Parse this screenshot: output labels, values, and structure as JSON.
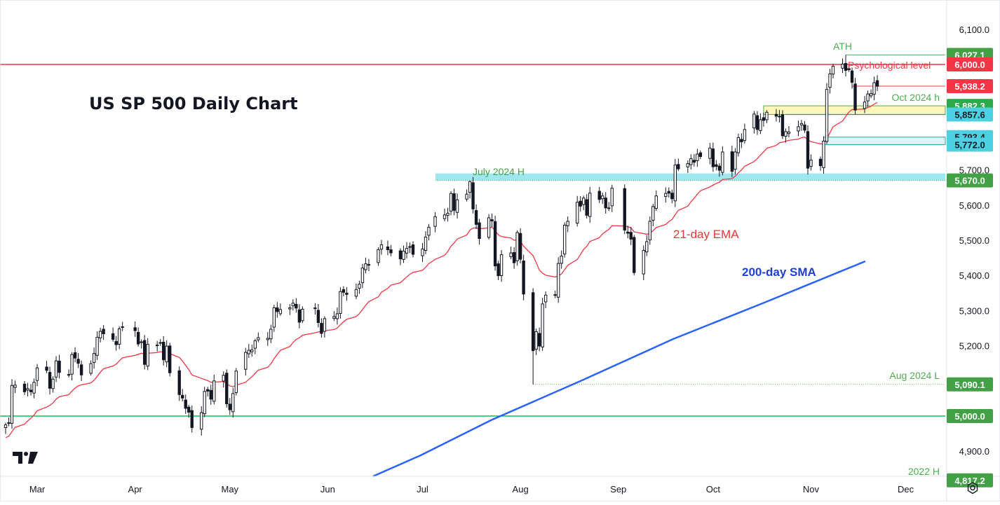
{
  "chart_data": {
    "type": "candlestick",
    "title": "US SP 500 Daily Chart",
    "x_ticks": [
      "Mar",
      "Apr",
      "May",
      "Jun",
      "Jul",
      "Aug",
      "Sep",
      "Oct",
      "Nov",
      "Dec"
    ],
    "y_ticks": [
      "6,100.0",
      "5,700.0",
      "5,600.0",
      "5,500.0",
      "5,400.0",
      "5,300.0",
      "5,200.0",
      "4,900.0"
    ],
    "ylim": [
      4760,
      6160
    ],
    "x_range": [
      "2024-02-20",
      "2024-12-31"
    ],
    "key_levels": [
      {
        "label": "6,027.1",
        "value": 6027.1,
        "color": "#4caf50",
        "annotation": "ATH"
      },
      {
        "label": "6,000.0",
        "value": 6000.0,
        "color": "#f23645",
        "annotation": "Psychological level"
      },
      {
        "label": "5,938.2",
        "value": 5938.2,
        "color": "#f23645",
        "annotation": ""
      },
      {
        "label": "5,882.3",
        "value": 5882.3,
        "color": "#089981",
        "annotation": "Oct 2024 h"
      },
      {
        "label": "5,857.6",
        "value": 5857.6,
        "color": "#26c6da",
        "annotation": ""
      },
      {
        "label": "5,793.4",
        "value": 5793.4,
        "color": "#26c6da",
        "annotation": ""
      },
      {
        "label": "5,772.0",
        "value": 5772.0,
        "color": "#26c6da",
        "annotation": ""
      },
      {
        "label": "5,670.0",
        "value": 5670.0,
        "color": "#4caf50",
        "annotation": "July 2024 H"
      },
      {
        "label": "5,090.1",
        "value": 5090.1,
        "color": "#4caf50",
        "annotation": "Aug 2024 L"
      },
      {
        "label": "5,000.0",
        "value": 5000.0,
        "color": "#4caf50",
        "annotation": ""
      },
      {
        "label": "4,817.2",
        "value": 4817.2,
        "color": "#4caf50",
        "annotation": "2022 H"
      }
    ],
    "annotations": {
      "ema_label": "21-day EMA",
      "sma_label": "200-day SMA"
    },
    "series": {
      "closes": [
        {
          "x": "2024-02-20",
          "y": 4975
        },
        {
          "x": "2024-02-21",
          "y": 4981
        },
        {
          "x": "2024-02-22",
          "y": 5087
        },
        {
          "x": "2024-02-23",
          "y": 5088
        },
        {
          "x": "2024-02-26",
          "y": 5069
        },
        {
          "x": "2024-02-27",
          "y": 5078
        },
        {
          "x": "2024-02-28",
          "y": 5069
        },
        {
          "x": "2024-02-29",
          "y": 5096
        },
        {
          "x": "2024-03-01",
          "y": 5137
        },
        {
          "x": "2024-03-04",
          "y": 5130
        },
        {
          "x": "2024-03-05",
          "y": 5079
        },
        {
          "x": "2024-03-06",
          "y": 5105
        },
        {
          "x": "2024-03-07",
          "y": 5157
        },
        {
          "x": "2024-03-08",
          "y": 5124
        },
        {
          "x": "2024-03-11",
          "y": 5117
        },
        {
          "x": "2024-03-12",
          "y": 5175
        },
        {
          "x": "2024-03-13",
          "y": 5165
        },
        {
          "x": "2024-03-14",
          "y": 5150
        },
        {
          "x": "2024-03-15",
          "y": 5117
        },
        {
          "x": "2024-03-18",
          "y": 5149
        },
        {
          "x": "2024-03-19",
          "y": 5178
        },
        {
          "x": "2024-03-20",
          "y": 5224
        },
        {
          "x": "2024-03-21",
          "y": 5241
        },
        {
          "x": "2024-03-22",
          "y": 5234
        },
        {
          "x": "2024-03-25",
          "y": 5218
        },
        {
          "x": "2024-03-26",
          "y": 5203
        },
        {
          "x": "2024-03-27",
          "y": 5248
        },
        {
          "x": "2024-03-28",
          "y": 5254
        },
        {
          "x": "2024-04-01",
          "y": 5243
        },
        {
          "x": "2024-04-02",
          "y": 5205
        },
        {
          "x": "2024-04-03",
          "y": 5211
        },
        {
          "x": "2024-04-04",
          "y": 5147
        },
        {
          "x": "2024-04-05",
          "y": 5204
        },
        {
          "x": "2024-04-08",
          "y": 5202
        },
        {
          "x": "2024-04-09",
          "y": 5209
        },
        {
          "x": "2024-04-10",
          "y": 5160
        },
        {
          "x": "2024-04-11",
          "y": 5199
        },
        {
          "x": "2024-04-12",
          "y": 5123
        },
        {
          "x": "2024-04-15",
          "y": 5061
        },
        {
          "x": "2024-04-16",
          "y": 5051
        },
        {
          "x": "2024-04-17",
          "y": 5022
        },
        {
          "x": "2024-04-18",
          "y": 5011
        },
        {
          "x": "2024-04-19",
          "y": 4967
        },
        {
          "x": "2024-04-22",
          "y": 5010
        },
        {
          "x": "2024-04-23",
          "y": 5070
        },
        {
          "x": "2024-04-24",
          "y": 5071
        },
        {
          "x": "2024-04-25",
          "y": 5048
        },
        {
          "x": "2024-04-26",
          "y": 5100
        },
        {
          "x": "2024-04-29",
          "y": 5116
        },
        {
          "x": "2024-04-30",
          "y": 5035
        },
        {
          "x": "2024-05-01",
          "y": 5018
        },
        {
          "x": "2024-05-02",
          "y": 5064
        },
        {
          "x": "2024-05-03",
          "y": 5128
        },
        {
          "x": "2024-05-06",
          "y": 5181
        },
        {
          "x": "2024-05-07",
          "y": 5187
        },
        {
          "x": "2024-05-08",
          "y": 5188
        },
        {
          "x": "2024-05-09",
          "y": 5214
        },
        {
          "x": "2024-05-10",
          "y": 5223
        },
        {
          "x": "2024-05-13",
          "y": 5221
        },
        {
          "x": "2024-05-14",
          "y": 5247
        },
        {
          "x": "2024-05-15",
          "y": 5308
        },
        {
          "x": "2024-05-16",
          "y": 5297
        },
        {
          "x": "2024-05-17",
          "y": 5303
        },
        {
          "x": "2024-05-20",
          "y": 5308
        },
        {
          "x": "2024-05-21",
          "y": 5321
        },
        {
          "x": "2024-05-22",
          "y": 5307
        },
        {
          "x": "2024-05-23",
          "y": 5267
        },
        {
          "x": "2024-05-24",
          "y": 5304
        },
        {
          "x": "2024-05-28",
          "y": 5306
        },
        {
          "x": "2024-05-29",
          "y": 5266
        },
        {
          "x": "2024-05-30",
          "y": 5235
        },
        {
          "x": "2024-05-31",
          "y": 5277
        },
        {
          "x": "2024-06-03",
          "y": 5283
        },
        {
          "x": "2024-06-04",
          "y": 5291
        },
        {
          "x": "2024-06-05",
          "y": 5354
        },
        {
          "x": "2024-06-06",
          "y": 5352
        },
        {
          "x": "2024-06-07",
          "y": 5346
        },
        {
          "x": "2024-06-10",
          "y": 5360
        },
        {
          "x": "2024-06-11",
          "y": 5375
        },
        {
          "x": "2024-06-12",
          "y": 5421
        },
        {
          "x": "2024-06-13",
          "y": 5433
        },
        {
          "x": "2024-06-14",
          "y": 5431
        },
        {
          "x": "2024-06-17",
          "y": 5473
        },
        {
          "x": "2024-06-18",
          "y": 5487
        },
        {
          "x": "2024-06-20",
          "y": 5473
        },
        {
          "x": "2024-06-21",
          "y": 5464
        },
        {
          "x": "2024-06-24",
          "y": 5447
        },
        {
          "x": "2024-06-25",
          "y": 5469
        },
        {
          "x": "2024-06-26",
          "y": 5477
        },
        {
          "x": "2024-06-27",
          "y": 5482
        },
        {
          "x": "2024-06-28",
          "y": 5460
        },
        {
          "x": "2024-07-01",
          "y": 5475
        },
        {
          "x": "2024-07-02",
          "y": 5509
        },
        {
          "x": "2024-07-03",
          "y": 5537
        },
        {
          "x": "2024-07-05",
          "y": 5567
        },
        {
          "x": "2024-07-08",
          "y": 5572
        },
        {
          "x": "2024-07-09",
          "y": 5577
        },
        {
          "x": "2024-07-10",
          "y": 5633
        },
        {
          "x": "2024-07-11",
          "y": 5585
        },
        {
          "x": "2024-07-12",
          "y": 5615
        },
        {
          "x": "2024-07-15",
          "y": 5631
        },
        {
          "x": "2024-07-16",
          "y": 5667
        },
        {
          "x": "2024-07-17",
          "y": 5589
        },
        {
          "x": "2024-07-18",
          "y": 5545
        },
        {
          "x": "2024-07-19",
          "y": 5505
        },
        {
          "x": "2024-07-22",
          "y": 5564
        },
        {
          "x": "2024-07-23",
          "y": 5555
        },
        {
          "x": "2024-07-24",
          "y": 5427
        },
        {
          "x": "2024-07-25",
          "y": 5399
        },
        {
          "x": "2024-07-26",
          "y": 5459
        },
        {
          "x": "2024-07-29",
          "y": 5464
        },
        {
          "x": "2024-07-30",
          "y": 5436
        },
        {
          "x": "2024-07-31",
          "y": 5522
        },
        {
          "x": "2024-08-01",
          "y": 5446
        },
        {
          "x": "2024-08-02",
          "y": 5347
        },
        {
          "x": "2024-08-05",
          "y": 5186
        },
        {
          "x": "2024-08-06",
          "y": 5240
        },
        {
          "x": "2024-08-07",
          "y": 5199
        },
        {
          "x": "2024-08-08",
          "y": 5319
        },
        {
          "x": "2024-08-09",
          "y": 5344
        },
        {
          "x": "2024-08-12",
          "y": 5344
        },
        {
          "x": "2024-08-13",
          "y": 5434
        },
        {
          "x": "2024-08-14",
          "y": 5455
        },
        {
          "x": "2024-08-15",
          "y": 5543
        },
        {
          "x": "2024-08-16",
          "y": 5554
        },
        {
          "x": "2024-08-19",
          "y": 5608
        },
        {
          "x": "2024-08-20",
          "y": 5597
        },
        {
          "x": "2024-08-21",
          "y": 5620
        },
        {
          "x": "2024-08-22",
          "y": 5571
        },
        {
          "x": "2024-08-23",
          "y": 5634
        },
        {
          "x": "2024-08-26",
          "y": 5616
        },
        {
          "x": "2024-08-27",
          "y": 5626
        },
        {
          "x": "2024-08-28",
          "y": 5592
        },
        {
          "x": "2024-08-29",
          "y": 5592
        },
        {
          "x": "2024-08-30",
          "y": 5648
        },
        {
          "x": "2024-09-03",
          "y": 5529
        },
        {
          "x": "2024-09-04",
          "y": 5520
        },
        {
          "x": "2024-09-05",
          "y": 5503
        },
        {
          "x": "2024-09-06",
          "y": 5408
        },
        {
          "x": "2024-09-09",
          "y": 5471
        },
        {
          "x": "2024-09-10",
          "y": 5496
        },
        {
          "x": "2024-09-11",
          "y": 5554
        },
        {
          "x": "2024-09-12",
          "y": 5596
        },
        {
          "x": "2024-09-13",
          "y": 5626
        },
        {
          "x": "2024-09-16",
          "y": 5633
        },
        {
          "x": "2024-09-17",
          "y": 5634
        },
        {
          "x": "2024-09-18",
          "y": 5618
        },
        {
          "x": "2024-09-19",
          "y": 5714
        },
        {
          "x": "2024-09-20",
          "y": 5703
        },
        {
          "x": "2024-09-23",
          "y": 5718
        },
        {
          "x": "2024-09-24",
          "y": 5732
        },
        {
          "x": "2024-09-25",
          "y": 5722
        },
        {
          "x": "2024-09-26",
          "y": 5745
        },
        {
          "x": "2024-09-27",
          "y": 5738
        },
        {
          "x": "2024-09-30",
          "y": 5762
        },
        {
          "x": "2024-10-01",
          "y": 5709
        },
        {
          "x": "2024-10-02",
          "y": 5710
        },
        {
          "x": "2024-10-03",
          "y": 5699
        },
        {
          "x": "2024-10-04",
          "y": 5751
        },
        {
          "x": "2024-10-07",
          "y": 5696
        },
        {
          "x": "2024-10-08",
          "y": 5751
        },
        {
          "x": "2024-10-09",
          "y": 5792
        },
        {
          "x": "2024-10-10",
          "y": 5780
        },
        {
          "x": "2024-10-11",
          "y": 5815
        },
        {
          "x": "2024-10-14",
          "y": 5859
        },
        {
          "x": "2024-10-15",
          "y": 5815
        },
        {
          "x": "2024-10-16",
          "y": 5843
        },
        {
          "x": "2024-10-17",
          "y": 5841
        },
        {
          "x": "2024-10-18",
          "y": 5864
        },
        {
          "x": "2024-10-21",
          "y": 5853
        },
        {
          "x": "2024-10-22",
          "y": 5851
        },
        {
          "x": "2024-10-23",
          "y": 5797
        },
        {
          "x": "2024-10-24",
          "y": 5809
        },
        {
          "x": "2024-10-25",
          "y": 5808
        },
        {
          "x": "2024-10-28",
          "y": 5823
        },
        {
          "x": "2024-10-29",
          "y": 5832
        },
        {
          "x": "2024-10-30",
          "y": 5813
        },
        {
          "x": "2024-10-31",
          "y": 5705
        },
        {
          "x": "2024-11-01",
          "y": 5728
        },
        {
          "x": "2024-11-04",
          "y": 5712
        },
        {
          "x": "2024-11-05",
          "y": 5782
        },
        {
          "x": "2024-11-06",
          "y": 5929
        },
        {
          "x": "2024-11-07",
          "y": 5973
        },
        {
          "x": "2024-11-08",
          "y": 5995
        },
        {
          "x": "2024-11-11",
          "y": 6001
        },
        {
          "x": "2024-11-12",
          "y": 5983
        },
        {
          "x": "2024-11-13",
          "y": 5985
        },
        {
          "x": "2024-11-14",
          "y": 5949
        },
        {
          "x": "2024-11-15",
          "y": 5870
        },
        {
          "x": "2024-11-18",
          "y": 5893
        },
        {
          "x": "2024-11-19",
          "y": 5916
        },
        {
          "x": "2024-11-20",
          "y": 5917
        },
        {
          "x": "2024-11-21",
          "y": 5948
        },
        {
          "x": "2024-11-22",
          "y": 5938
        }
      ]
    }
  },
  "colors": {
    "up": "#ffffff",
    "down": "#131722",
    "wick": "#131722",
    "ema": "#f23645",
    "sma": "#2962ff",
    "green_line": "#00c853",
    "red_line": "#f23645",
    "cyan_zone": "#80deea",
    "yellow_zone": "#fff59d",
    "axis_text": "#131722",
    "grid_border": "#e0e3eb"
  }
}
